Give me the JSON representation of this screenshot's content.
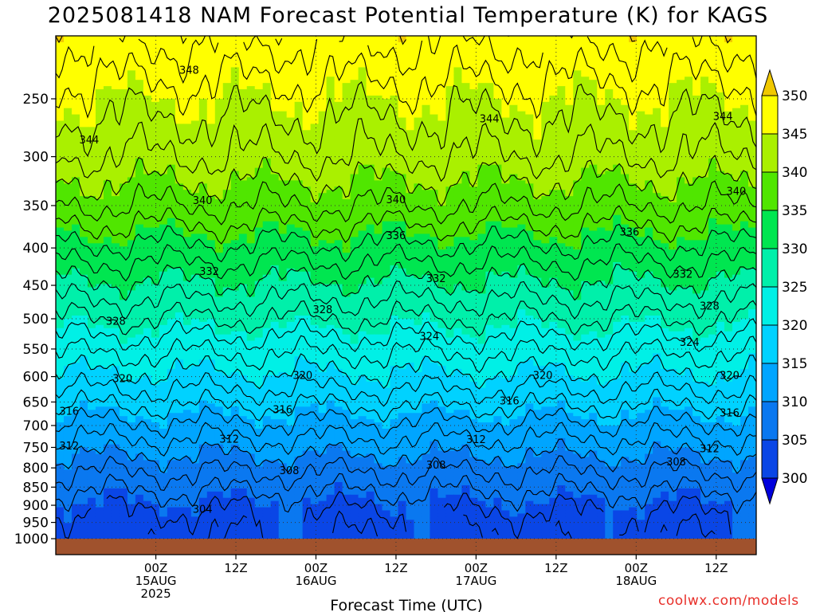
{
  "chart_data": {
    "type": "heatmap",
    "title": "2025081418 NAM Forecast Potential Temperature (K) for KAGS",
    "xlabel": "Forecast Time (UTC)",
    "ylabel": "",
    "x_range_hours": [
      -15,
      90
    ],
    "y_range_hpa": [
      1000,
      200
    ],
    "y_scale": "log",
    "grid": true,
    "legend": "right",
    "y_ticks": [
      250,
      300,
      350,
      400,
      450,
      500,
      550,
      600,
      650,
      700,
      750,
      800,
      850,
      900,
      950,
      1000
    ],
    "x_ticks": [
      {
        "hour": 0,
        "lines": [
          "00Z",
          "15AUG",
          "2025"
        ]
      },
      {
        "hour": 12,
        "lines": [
          "12Z"
        ]
      },
      {
        "hour": 24,
        "lines": [
          "00Z",
          "16AUG"
        ]
      },
      {
        "hour": 36,
        "lines": [
          "12Z"
        ]
      },
      {
        "hour": 48,
        "lines": [
          "00Z",
          "17AUG"
        ]
      },
      {
        "hour": 60,
        "lines": [
          "12Z"
        ]
      },
      {
        "hour": 72,
        "lines": [
          "00Z",
          "18AUG"
        ]
      },
      {
        "hour": 84,
        "lines": [
          "12Z"
        ]
      }
    ],
    "colorbar": {
      "levels": [
        300,
        305,
        310,
        315,
        320,
        325,
        330,
        335,
        340,
        345,
        350
      ],
      "colors": [
        "#0000dc",
        "#0a46e6",
        "#0a78f0",
        "#00a5ff",
        "#00d2ff",
        "#00f0e6",
        "#00f0aa",
        "#00e650",
        "#50e600",
        "#aaf000",
        "#ffff00",
        "#f0c800"
      ]
    },
    "profile": [
      {
        "p": 1000,
        "theta": 302
      },
      {
        "p": 950,
        "theta": 303
      },
      {
        "p": 900,
        "theta": 304.5
      },
      {
        "p": 850,
        "theta": 306.5
      },
      {
        "p": 800,
        "theta": 308.5
      },
      {
        "p": 750,
        "theta": 311
      },
      {
        "p": 700,
        "theta": 313.5
      },
      {
        "p": 650,
        "theta": 316.5
      },
      {
        "p": 600,
        "theta": 319.5
      },
      {
        "p": 550,
        "theta": 322.5
      },
      {
        "p": 500,
        "theta": 326
      },
      {
        "p": 450,
        "theta": 329.5
      },
      {
        "p": 400,
        "theta": 333.5
      },
      {
        "p": 350,
        "theta": 338
      },
      {
        "p": 300,
        "theta": 342
      },
      {
        "p": 250,
        "theta": 345
      },
      {
        "p": 200,
        "theta": 349
      }
    ],
    "contour_labels": [
      {
        "text": "348",
        "hour": 5,
        "p": 228
      },
      {
        "text": "344",
        "hour": 50,
        "p": 266
      },
      {
        "text": "344",
        "hour": 85,
        "p": 264
      },
      {
        "text": "344",
        "hour": -10,
        "p": 284
      },
      {
        "text": "340",
        "hour": 7,
        "p": 344
      },
      {
        "text": "340",
        "hour": 36,
        "p": 343
      },
      {
        "text": "340",
        "hour": 87,
        "p": 334
      },
      {
        "text": "336",
        "hour": 36,
        "p": 384
      },
      {
        "text": "336",
        "hour": 71,
        "p": 380
      },
      {
        "text": "332",
        "hour": 8,
        "p": 430
      },
      {
        "text": "332",
        "hour": 42,
        "p": 440
      },
      {
        "text": "332",
        "hour": 79,
        "p": 434
      },
      {
        "text": "328",
        "hour": 25,
        "p": 485
      },
      {
        "text": "328",
        "hour": 83,
        "p": 480
      },
      {
        "text": "328",
        "hour": -6,
        "p": 503
      },
      {
        "text": "324",
        "hour": 41,
        "p": 528
      },
      {
        "text": "324",
        "hour": 80,
        "p": 538
      },
      {
        "text": "320",
        "hour": -5,
        "p": 603
      },
      {
        "text": "320",
        "hour": 22,
        "p": 597
      },
      {
        "text": "320",
        "hour": 58,
        "p": 597
      },
      {
        "text": "320",
        "hour": 86,
        "p": 597
      },
      {
        "text": "316",
        "hour": -13,
        "p": 668
      },
      {
        "text": "316",
        "hour": 19,
        "p": 665
      },
      {
        "text": "316",
        "hour": 53,
        "p": 647
      },
      {
        "text": "316",
        "hour": 86,
        "p": 672
      },
      {
        "text": "312",
        "hour": -13,
        "p": 745
      },
      {
        "text": "312",
        "hour": 11,
        "p": 730
      },
      {
        "text": "312",
        "hour": 48,
        "p": 731
      },
      {
        "text": "312",
        "hour": 83,
        "p": 752
      },
      {
        "text": "308",
        "hour": 20,
        "p": 806
      },
      {
        "text": "308",
        "hour": 42,
        "p": 792
      },
      {
        "text": "308",
        "hour": 78,
        "p": 784
      },
      {
        "text": "304",
        "hour": 7,
        "p": 910
      }
    ]
  },
  "watermark": "coolwx.com/models"
}
